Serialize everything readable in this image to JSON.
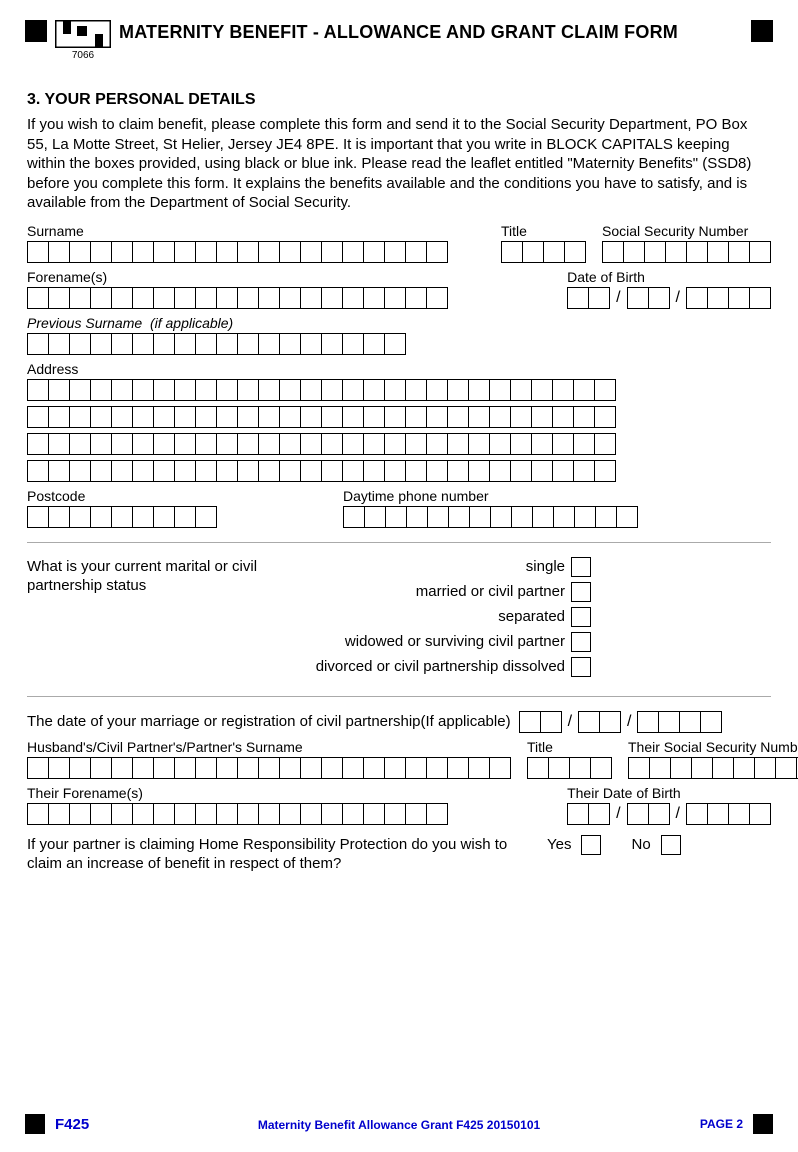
{
  "header": {
    "logo_sub": "7066",
    "title": "MATERNITY BENEFIT - ALLOWANCE AND GRANT CLAIM FORM"
  },
  "section": {
    "title": "3. YOUR PERSONAL DETAILS",
    "intro": "If you wish to claim benefit, please complete this form and send it to the Social Security Department, PO Box 55, La Motte Street, St Helier, Jersey JE4 8PE.  It is important that you write in BLOCK CAPITALS keeping within the boxes provided, using black or blue ink. Please read the leaflet entitled \"Maternity Benefits\" (SSD8) before you complete this form.  It explains the benefits available and the conditions you have to satisfy, and is available from the Department of Social Security."
  },
  "labels": {
    "surname": "Surname",
    "title_field": "Title",
    "ssn": "Social Security Number",
    "forenames": "Forename(s)",
    "dob": "Date of Birth",
    "prev_surname": "Previous Surname",
    "prev_surname_hint": "(if applicable)",
    "address": "Address",
    "postcode": "Postcode",
    "phone": "Daytime phone number",
    "marital_q": "What is your current marital or civil partnership status",
    "marital_options": [
      "single",
      "married or civil partner",
      "separated",
      "widowed or surviving civil partner",
      "divorced or civil partnership dissolved"
    ],
    "marriage_date": "The date of your marriage or registration of civil partnership(If applicable)",
    "partner_surname": "Husband's/Civil Partner's/Partner's Surname",
    "partner_title": "Title",
    "partner_ssn": "Their Social Security Number",
    "partner_forenames": "Their Forename(s)",
    "partner_dob": "Their Date of Birth",
    "hrp_q": "If your partner is claiming Home Responsibility Protection do you wish to claim an increase of benefit in respect of them?",
    "yes": "Yes",
    "no": "No"
  },
  "box_counts": {
    "surname": 20,
    "title": 4,
    "ssn": 8,
    "forenames": 20,
    "prev_surname": 18,
    "address_row": 28,
    "postcode": 9,
    "phone": 14,
    "partner_surname": 23,
    "partner_title": 4,
    "partner_ssn": 9,
    "partner_forenames": 20
  },
  "footer": {
    "code": "F425",
    "center": "Maternity Benefit Allowance Grant F425 20150101",
    "page": "PAGE 2"
  }
}
